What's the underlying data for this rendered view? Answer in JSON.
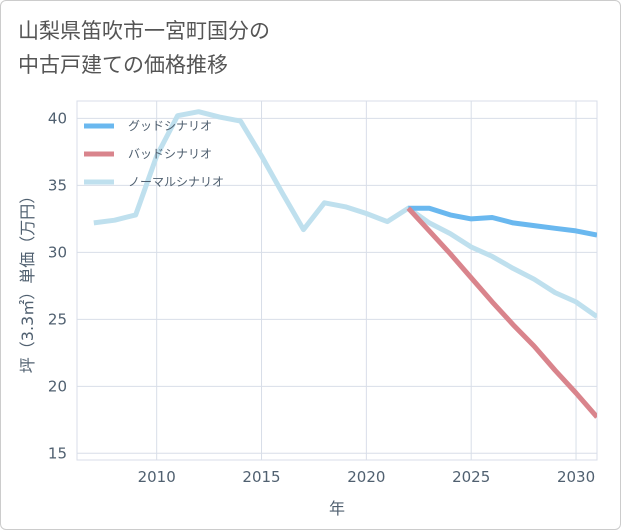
{
  "title_lines": [
    "山梨県笛吹市一宮町国分の",
    "中古戸建ての価格推移"
  ],
  "colors": {
    "good": "#6ab8ef",
    "bad": "#d9848c",
    "normal": "#bfe0ee",
    "grid": "#d8dee8",
    "text": "#506070"
  },
  "chart_data": {
    "type": "line",
    "title": "山梨県笛吹市一宮町国分の中古戸建ての価格推移",
    "xlabel": "年",
    "ylabel": "坪（3.3㎡）単価（万円）",
    "xlim": [
      2006.2,
      2031
    ],
    "ylim": [
      14.5,
      41.3
    ],
    "xticks": [
      2010,
      2015,
      2020,
      2025,
      2030
    ],
    "yticks": [
      15,
      20,
      25,
      30,
      35,
      40
    ],
    "legend_position": "top-left",
    "series": [
      {
        "key": "normal",
        "name": "ノーマルシナリオ",
        "x": [
          2007,
          2008,
          2009,
          2010,
          2011,
          2012,
          2013,
          2014,
          2015,
          2016,
          2017,
          2018,
          2019,
          2020,
          2021,
          2022,
          2023,
          2024,
          2025,
          2026,
          2027,
          2028,
          2029,
          2030,
          2031
        ],
        "values": [
          32.2,
          32.4,
          32.8,
          37.2,
          40.2,
          40.5,
          40.1,
          39.8,
          37.2,
          34.4,
          31.7,
          33.7,
          33.4,
          32.9,
          32.3,
          33.3,
          32.2,
          31.4,
          30.4,
          29.7,
          28.8,
          28.0,
          27.0,
          26.3,
          25.2
        ]
      },
      {
        "key": "good",
        "name": "グッドシナリオ",
        "x": [
          2022,
          2023,
          2024,
          2025,
          2026,
          2027,
          2028,
          2029,
          2030,
          2031
        ],
        "values": [
          33.3,
          33.3,
          32.8,
          32.5,
          32.6,
          32.2,
          32.0,
          31.8,
          31.6,
          31.3
        ]
      },
      {
        "key": "bad",
        "name": "バッドシナリオ",
        "x": [
          2022,
          2023,
          2024,
          2025,
          2026,
          2027,
          2028,
          2029,
          2030,
          2031
        ],
        "values": [
          33.3,
          31.6,
          29.9,
          28.1,
          26.3,
          24.6,
          23.0,
          21.2,
          19.5,
          17.7
        ]
      }
    ]
  },
  "legend": [
    {
      "key": "good",
      "label": "グッドシナリオ"
    },
    {
      "key": "bad",
      "label": "バッドシナリオ"
    },
    {
      "key": "normal",
      "label": "ノーマルシナリオ"
    }
  ]
}
